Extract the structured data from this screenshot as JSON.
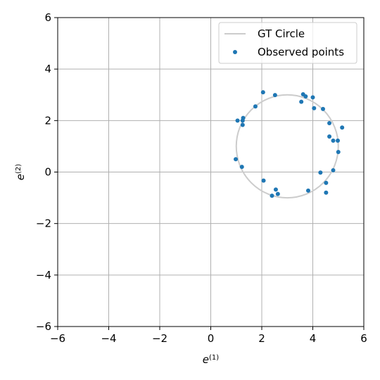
{
  "chart_data": {
    "type": "scatter",
    "title": "",
    "xlabel": {
      "base": "e",
      "sup": "(1)"
    },
    "ylabel": {
      "base": "e",
      "sup": "(2)"
    },
    "xlim": [
      -6,
      6
    ],
    "ylim": [
      -6,
      6
    ],
    "xticks": [
      -6,
      -4,
      -2,
      0,
      2,
      4,
      6
    ],
    "yticks": [
      -6,
      -4,
      -2,
      0,
      2,
      4,
      6
    ],
    "xtick_labels": [
      "−6",
      "−4",
      "−2",
      "0",
      "2",
      "4",
      "6"
    ],
    "ytick_labels": [
      "−6",
      "−4",
      "−2",
      "0",
      "2",
      "4",
      "6"
    ],
    "grid": true,
    "legend_position": "top-right",
    "series": [
      {
        "name": "GT Circle",
        "kind": "circle",
        "color": "#cccccc",
        "center": [
          3,
          1
        ],
        "radius": 2
      },
      {
        "name": "Observed points",
        "kind": "scatter",
        "color": "#1f77b4",
        "points": [
          [
            2.05,
            3.1
          ],
          [
            2.52,
            2.99
          ],
          [
            3.62,
            3.02
          ],
          [
            3.72,
            2.94
          ],
          [
            3.55,
            2.73
          ],
          [
            4.0,
            2.9
          ],
          [
            4.05,
            2.48
          ],
          [
            4.4,
            2.45
          ],
          [
            1.75,
            2.55
          ],
          [
            1.27,
            2.1
          ],
          [
            1.25,
            2.0
          ],
          [
            1.05,
            2.0
          ],
          [
            1.25,
            1.83
          ],
          [
            4.65,
            1.9
          ],
          [
            5.15,
            1.73
          ],
          [
            4.65,
            1.38
          ],
          [
            4.8,
            1.22
          ],
          [
            4.98,
            1.22
          ],
          [
            5.0,
            0.78
          ],
          [
            0.98,
            0.5
          ],
          [
            1.22,
            0.2
          ],
          [
            4.3,
            -0.02
          ],
          [
            4.8,
            0.07
          ],
          [
            2.07,
            -0.33
          ],
          [
            4.52,
            -0.42
          ],
          [
            2.55,
            -0.68
          ],
          [
            3.82,
            -0.72
          ],
          [
            4.52,
            -0.8
          ],
          [
            2.63,
            -0.85
          ],
          [
            2.4,
            -0.92
          ]
        ]
      }
    ]
  }
}
